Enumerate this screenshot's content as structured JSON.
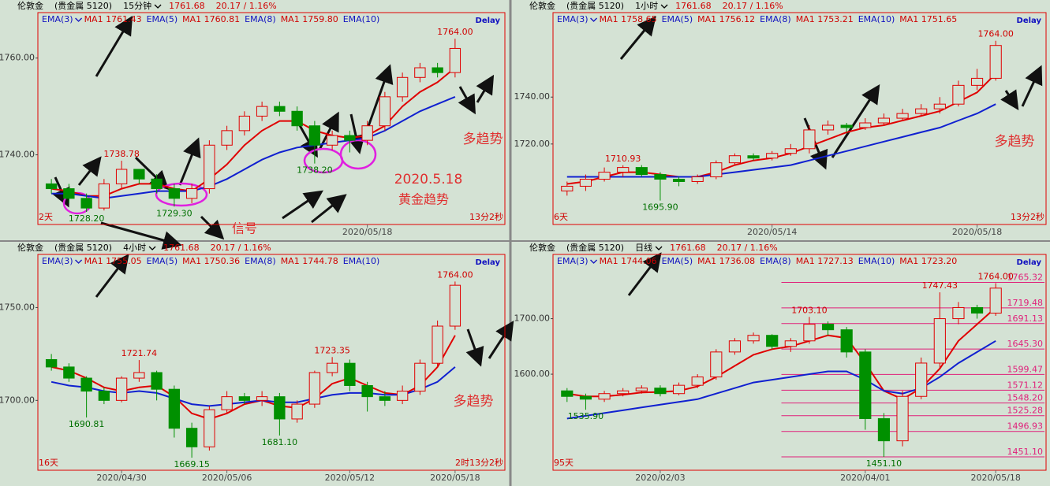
{
  "chart_data": [
    {
      "type": "candlestick",
      "name": "伦敦金",
      "market": "(贵金属 5120)",
      "period": "15分钟",
      "price": "1761.68",
      "change": "20.17 / 1.16%",
      "indicators": [
        {
          "text": "EMA(3)",
          "color": "#1010c0"
        },
        {
          "text": "MA1 1761.43",
          "color": "#d00000"
        },
        {
          "text": "EMA(5)",
          "color": "#1010c0"
        },
        {
          "text": "MA1 1760.81",
          "color": "#d00000"
        },
        {
          "text": "EMA(8)",
          "color": "#1010c0"
        },
        {
          "text": "MA1 1759.80",
          "color": "#d00000"
        },
        {
          "text": "EMA(10)",
          "color": "#1010c0"
        }
      ],
      "delay": "Delay",
      "corner_left": "2天",
      "corner_right": "13分2秒",
      "ylim": [
        1725.6,
        1769.4
      ],
      "yticks": [
        {
          "value": 1740,
          "label": "1740.00"
        },
        {
          "value": 1760,
          "label": "1760.00"
        }
      ],
      "categories": [
        null,
        null,
        null,
        null,
        null,
        null,
        null,
        null,
        null,
        null,
        null,
        null,
        null,
        null,
        null,
        null,
        null,
        null,
        "2020/05/18",
        null,
        null,
        null,
        null,
        null
      ],
      "open": [
        1734,
        1733,
        1731,
        1729,
        1734,
        1737,
        1735,
        1733,
        1731,
        1733,
        1742,
        1745,
        1748,
        1750,
        1749,
        1746,
        1742,
        1744,
        1743,
        1746,
        1752,
        1756,
        1758,
        1757
      ],
      "high": [
        1735,
        1734,
        1732,
        1735,
        1738.78,
        1737,
        1736,
        1734,
        1734,
        1743,
        1746,
        1749,
        1751,
        1751,
        1750,
        1747,
        1745,
        1745,
        1747,
        1753,
        1757,
        1759,
        1759,
        1764
      ],
      "low": [
        1732,
        1730,
        1728.2,
        1728.5,
        1733,
        1734,
        1732,
        1729.3,
        1730,
        1732,
        1741,
        1744,
        1747,
        1748,
        1745,
        1738.2,
        1741,
        1740.5,
        1742,
        1745,
        1751,
        1755,
        1756,
        1756
      ],
      "close": [
        1733,
        1731,
        1729,
        1734,
        1737,
        1735,
        1733,
        1731,
        1733,
        1742,
        1745,
        1748,
        1750,
        1749,
        1746,
        1742,
        1744,
        1743,
        1746,
        1752,
        1756,
        1758,
        1757,
        1762
      ],
      "high_labels": [
        null,
        null,
        null,
        null,
        "1738.78",
        null,
        null,
        null,
        null,
        null,
        null,
        null,
        null,
        null,
        null,
        null,
        null,
        null,
        null,
        null,
        null,
        null,
        null,
        "1764.00"
      ],
      "low_labels": [
        null,
        null,
        "1728.20",
        null,
        null,
        null,
        null,
        "1729.30",
        null,
        null,
        null,
        null,
        null,
        null,
        null,
        "1738.20",
        null,
        null,
        null,
        null,
        null,
        null,
        null,
        null
      ],
      "up_color": "#e00000",
      "down_color": "#009000",
      "lines": [
        {
          "color": "#e00000",
          "values": [
            1733,
            1732.5,
            1731.5,
            1731.5,
            1733,
            1734,
            1734,
            1733,
            1732.5,
            1735,
            1738,
            1742,
            1745,
            1747,
            1747,
            1745,
            1744,
            1743.5,
            1744,
            1746,
            1750,
            1753,
            1755,
            1758
          ]
        },
        {
          "color": "#1020d0",
          "values": [
            1732,
            1732,
            1731.5,
            1731,
            1731.5,
            1732,
            1732.5,
            1732.5,
            1732.5,
            1733.5,
            1735,
            1737,
            1739,
            1740.5,
            1741.5,
            1742,
            1742.5,
            1743,
            1743.5,
            1745,
            1747,
            1749,
            1750.5,
            1752
          ]
        }
      ],
      "notes": [
        "2020.5.18",
        "黄金趋势",
        "信号",
        "多趋势"
      ]
    },
    {
      "type": "candlestick",
      "name": "伦敦金",
      "market": "(贵金属 5120)",
      "period": "1小时",
      "price": "1761.68",
      "change": "20.17 / 1.16%",
      "indicators": [
        {
          "text": "EMA(3)",
          "color": "#1010c0"
        },
        {
          "text": "MA1 1758.65",
          "color": "#d00000"
        },
        {
          "text": "EMA(5)",
          "color": "#1010c0"
        },
        {
          "text": "MA1 1756.12",
          "color": "#d00000"
        },
        {
          "text": "EMA(8)",
          "color": "#1010c0"
        },
        {
          "text": "MA1 1753.21",
          "color": "#d00000"
        },
        {
          "text": "EMA(10)",
          "color": "#1010c0"
        },
        {
          "text": "MA1 1751.65",
          "color": "#d00000"
        }
      ],
      "delay": "Delay",
      "corner_left": "6天",
      "corner_right": "13分2秒",
      "ylim": [
        1685.7,
        1776
      ],
      "yticks": [
        {
          "value": 1720,
          "label": "1720.00"
        },
        {
          "value": 1740,
          "label": "1740.00"
        }
      ],
      "categories": [
        null,
        null,
        null,
        null,
        null,
        null,
        null,
        null,
        null,
        null,
        null,
        "2020/05/14",
        null,
        null,
        null,
        null,
        null,
        null,
        null,
        null,
        null,
        null,
        "2020/05/18",
        null
      ],
      "open": [
        1700,
        1702,
        1705,
        1708,
        1710,
        1707,
        1705,
        1704,
        1706,
        1712,
        1715,
        1714,
        1716,
        1718,
        1726,
        1728,
        1727,
        1729,
        1731,
        1733,
        1735,
        1737,
        1745,
        1748
      ],
      "high": [
        1704,
        1707,
        1710,
        1710.93,
        1711,
        1708,
        1706,
        1707,
        1713,
        1716,
        1716,
        1717,
        1720,
        1728,
        1730,
        1729,
        1731,
        1733,
        1735,
        1737,
        1740,
        1747,
        1752,
        1764
      ],
      "low": [
        1698,
        1700,
        1704,
        1706,
        1706,
        1695.9,
        1702,
        1703,
        1705,
        1711,
        1713,
        1713,
        1715,
        1716,
        1724,
        1725,
        1726,
        1728,
        1730,
        1732,
        1733,
        1736,
        1743,
        1747
      ],
      "close": [
        1702,
        1705,
        1708,
        1710,
        1707,
        1705,
        1704,
        1706,
        1712,
        1715,
        1714,
        1716,
        1718,
        1726,
        1728,
        1727,
        1729,
        1731,
        1733,
        1735,
        1737,
        1745,
        1748,
        1762
      ],
      "high_labels": [
        null,
        null,
        null,
        "1710.93",
        null,
        null,
        null,
        null,
        null,
        null,
        null,
        null,
        null,
        null,
        null,
        null,
        null,
        null,
        null,
        null,
        null,
        null,
        null,
        "1764.00"
      ],
      "low_labels": [
        null,
        null,
        null,
        null,
        null,
        "1695.90",
        null,
        null,
        null,
        null,
        null,
        null,
        null,
        null,
        null,
        null,
        null,
        null,
        null,
        null,
        null,
        null,
        null,
        null
      ],
      "up_color": "#e00000",
      "down_color": "#009000",
      "lines": [
        {
          "color": "#e00000",
          "values": [
            1703,
            1704,
            1706,
            1708,
            1708,
            1707,
            1706,
            1706,
            1708,
            1711,
            1713,
            1714,
            1716,
            1719,
            1722,
            1725,
            1727,
            1728,
            1730,
            1732,
            1734,
            1738,
            1742,
            1750
          ]
        },
        {
          "color": "#1020d0",
          "values": [
            1706,
            1706,
            1706,
            1706,
            1706,
            1706,
            1706,
            1706,
            1707,
            1708,
            1709,
            1710,
            1711,
            1713,
            1715,
            1717,
            1719,
            1721,
            1723,
            1725,
            1727,
            1730,
            1733,
            1737
          ]
        }
      ],
      "notes": [
        "多趋势"
      ]
    },
    {
      "type": "candlestick",
      "name": "伦敦金",
      "market": "(贵金属 5120)",
      "period": "4小时",
      "price": "1761.68",
      "change": "20.17 / 1.16%",
      "indicators": [
        {
          "text": "EMA(3)",
          "color": "#1010c0"
        },
        {
          "text": "MA1 1755.05",
          "color": "#d00000"
        },
        {
          "text": "EMA(5)",
          "color": "#1010c0"
        },
        {
          "text": "MA1 1750.36",
          "color": "#d00000"
        },
        {
          "text": "EMA(8)",
          "color": "#1010c0"
        },
        {
          "text": "MA1 1744.78",
          "color": "#d00000"
        },
        {
          "text": "EMA(10)",
          "color": "#1010c0"
        }
      ],
      "delay": "Delay",
      "corner_left": "16天",
      "corner_right": "2时13分2秒",
      "ylim": [
        1662.4,
        1778.6
      ],
      "yticks": [
        {
          "value": 1700,
          "label": "1700.00"
        },
        {
          "value": 1750,
          "label": "1750.00"
        }
      ],
      "categories": [
        null,
        null,
        null,
        null,
        "2020/04/30",
        null,
        null,
        null,
        null,
        null,
        "2020/05/06",
        null,
        null,
        null,
        null,
        null,
        null,
        "2020/05/12",
        null,
        null,
        null,
        null,
        null,
        "2020/05/18"
      ],
      "open": [
        1722,
        1718,
        1712,
        1705,
        1700,
        1712,
        1715,
        1706,
        1685,
        1675,
        1695,
        1702,
        1700,
        1702,
        1690,
        1698,
        1715,
        1720,
        1708,
        1702,
        1700,
        1705,
        1720,
        1740
      ],
      "high": [
        1725,
        1720,
        1713,
        1707,
        1713,
        1721.74,
        1716,
        1708,
        1688,
        1697,
        1705,
        1704,
        1705,
        1704,
        1700,
        1716,
        1723.35,
        1722,
        1710,
        1705,
        1708,
        1722,
        1743,
        1764
      ],
      "low": [
        1716,
        1710,
        1690.81,
        1698,
        1699,
        1710,
        1700,
        1680,
        1669.15,
        1673,
        1693,
        1698,
        1697,
        1681.1,
        1688,
        1696,
        1713,
        1705,
        1694,
        1697,
        1698,
        1703,
        1718,
        1738
      ],
      "close": [
        1718,
        1712,
        1705,
        1700,
        1712,
        1715,
        1706,
        1685,
        1675,
        1695,
        1702,
        1700,
        1702,
        1690,
        1698,
        1715,
        1720,
        1708,
        1702,
        1700,
        1705,
        1720,
        1740,
        1762
      ],
      "high_labels": [
        null,
        null,
        null,
        null,
        null,
        "1721.74",
        null,
        null,
        null,
        null,
        null,
        null,
        null,
        null,
        null,
        null,
        "1723.35",
        null,
        null,
        null,
        null,
        null,
        null,
        "1764.00"
      ],
      "low_labels": [
        null,
        null,
        "1690.81",
        null,
        null,
        null,
        null,
        null,
        "1669.15",
        null,
        null,
        null,
        null,
        "1681.10",
        null,
        null,
        null,
        null,
        null,
        null,
        null,
        null,
        null,
        null
      ],
      "up_color": "#e00000",
      "down_color": "#009000",
      "lines": [
        {
          "color": "#e00000",
          "values": [
            1718,
            1716,
            1712,
            1707,
            1705,
            1707,
            1708,
            1702,
            1693,
            1690,
            1693,
            1698,
            1700,
            1697,
            1696,
            1701,
            1709,
            1712,
            1708,
            1704,
            1703,
            1708,
            1718,
            1735
          ]
        },
        {
          "color": "#1020d0",
          "values": [
            1710,
            1708,
            1707,
            1705,
            1704,
            1705,
            1704,
            1701,
            1698,
            1697,
            1698,
            1699,
            1700,
            1699,
            1699,
            1701,
            1703,
            1704,
            1704,
            1703,
            1703,
            1706,
            1710,
            1718
          ]
        }
      ],
      "notes": [
        "多趋势"
      ]
    },
    {
      "type": "candlestick",
      "name": "伦敦金",
      "market": "(贵金属 5120)",
      "period": "日线",
      "price": "1761.68",
      "change": "20.17 / 1.16%",
      "indicators": [
        {
          "text": "EMA(3)",
          "color": "#1010c0"
        },
        {
          "text": "MA1 1744.06",
          "color": "#d00000"
        },
        {
          "text": "EMA(5)",
          "color": "#1010c0"
        },
        {
          "text": "MA1 1736.08",
          "color": "#d00000"
        },
        {
          "text": "EMA(8)",
          "color": "#1010c0"
        },
        {
          "text": "MA1 1727.13",
          "color": "#d00000"
        },
        {
          "text": "EMA(10)",
          "color": "#1010c0"
        },
        {
          "text": "MA1 1723.20",
          "color": "#d00000"
        }
      ],
      "delay": "Delay",
      "corner_left": "95天",
      "ylim": [
        1427,
        1815.7
      ],
      "yticks": [
        {
          "value": 1600,
          "label": "1600.00"
        },
        {
          "value": 1700,
          "label": "1700.00"
        }
      ],
      "categories": [
        null,
        null,
        null,
        null,
        null,
        "2020/02/03",
        null,
        null,
        null,
        null,
        null,
        null,
        null,
        null,
        null,
        null,
        "2020/04/01",
        null,
        null,
        null,
        null,
        null,
        null,
        "2020/05/18"
      ],
      "open": [
        1570,
        1560,
        1555,
        1565,
        1570,
        1575,
        1565,
        1580,
        1595,
        1640,
        1660,
        1670,
        1650,
        1660,
        1690,
        1680,
        1640,
        1520,
        1480,
        1560,
        1620,
        1700,
        1720,
        1710
      ],
      "high": [
        1575,
        1565,
        1570,
        1575,
        1580,
        1580,
        1585,
        1600,
        1645,
        1665,
        1675,
        1672,
        1665,
        1703.1,
        1695,
        1685,
        1645,
        1530,
        1570,
        1630,
        1747.43,
        1730,
        1725,
        1764
      ],
      "low": [
        1550,
        1535.9,
        1550,
        1560,
        1565,
        1560,
        1562,
        1575,
        1590,
        1635,
        1655,
        1645,
        1640,
        1655,
        1670,
        1630,
        1500,
        1451.1,
        1470,
        1555,
        1610,
        1690,
        1700,
        1705
      ],
      "close": [
        1560,
        1555,
        1565,
        1570,
        1575,
        1565,
        1580,
        1595,
        1640,
        1660,
        1670,
        1650,
        1660,
        1690,
        1680,
        1640,
        1520,
        1480,
        1560,
        1620,
        1700,
        1720,
        1710,
        1755
      ],
      "high_labels": [
        null,
        null,
        null,
        null,
        null,
        null,
        null,
        null,
        null,
        null,
        null,
        null,
        null,
        "1703.10",
        null,
        null,
        null,
        null,
        null,
        null,
        "1747.43",
        null,
        null,
        "1764.00"
      ],
      "low_labels": [
        null,
        "1535.90",
        null,
        null,
        null,
        null,
        null,
        null,
        null,
        null,
        null,
        null,
        null,
        null,
        null,
        null,
        null,
        "1451.10",
        null,
        null,
        null,
        null,
        null,
        null
      ],
      "up_color": "#e00000",
      "down_color": "#009000",
      "lines": [
        {
          "color": "#e00000",
          "values": [
            1565,
            1560,
            1560,
            1563,
            1567,
            1568,
            1570,
            1578,
            1595,
            1615,
            1635,
            1645,
            1650,
            1660,
            1670,
            1665,
            1620,
            1570,
            1555,
            1575,
            1610,
            1660,
            1690,
            1720
          ]
        },
        {
          "color": "#1020d0",
          "values": [
            1520,
            1525,
            1530,
            1535,
            1540,
            1545,
            1550,
            1555,
            1565,
            1575,
            1585,
            1590,
            1595,
            1600,
            1605,
            1605,
            1590,
            1570,
            1565,
            1575,
            1595,
            1620,
            1640,
            1660
          ]
        }
      ],
      "levels": [
        1765.32,
        1719.48,
        1691.13,
        {
          "value": 1645.3,
          "label": "1645.30"
        },
        1599.47,
        1571.12,
        {
          "value": 1548.2,
          "label": "1548.20"
        },
        1525.28,
        1496.93,
        {
          "value": 1451.1,
          "label": "1451.10"
        }
      ],
      "level_color": "#e0207a"
    }
  ]
}
